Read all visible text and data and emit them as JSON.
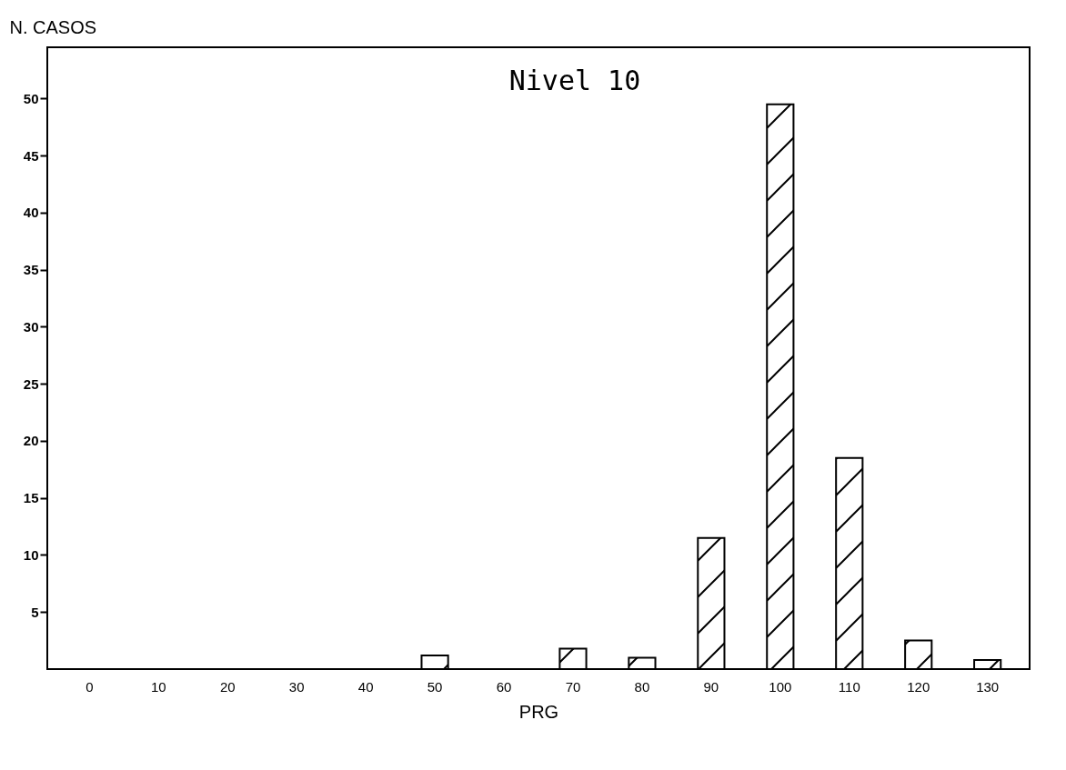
{
  "chart_data": {
    "type": "bar",
    "title": "Nivel 10",
    "xlabel": "PRG",
    "ylabel": "N. CASOS",
    "categories": [
      "0",
      "10",
      "20",
      "30",
      "40",
      "50",
      "60",
      "70",
      "80",
      "90",
      "100",
      "110",
      "120",
      "130"
    ],
    "values": [
      0,
      0,
      0,
      0,
      0,
      1.2,
      0,
      1.8,
      1,
      11.5,
      49.5,
      18.5,
      2.5,
      0.8
    ],
    "color": "#000000",
    "ylim": [
      0,
      54.5
    ],
    "yticks": [
      5,
      10,
      15,
      20,
      25,
      30,
      35,
      40,
      45,
      50
    ],
    "grid": false
  }
}
